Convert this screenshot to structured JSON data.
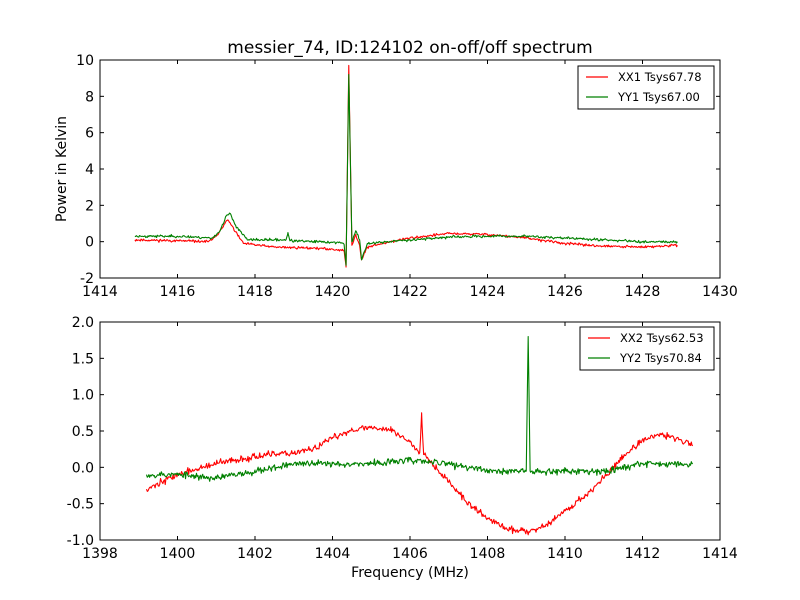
{
  "title": "messier_74, ID:124102 on-off/off spectrum",
  "chart_data": [
    {
      "type": "line",
      "title": "messier_74, ID:124102 on-off/off spectrum",
      "xlabel": "",
      "ylabel": "Power in Kelvin",
      "xlim": [
        1414,
        1430
      ],
      "ylim": [
        -2,
        10
      ],
      "xticks": [
        1414,
        1416,
        1418,
        1420,
        1422,
        1424,
        1426,
        1428,
        1430
      ],
      "yticks": [
        -2,
        0,
        2,
        4,
        6,
        8,
        10
      ],
      "xrange": [
        1414.9,
        1428.9
      ],
      "grid": false,
      "legend_position": "top-right",
      "series": [
        {
          "name": "XX1 Tsys67.78",
          "color": "#ff0000",
          "noise": 0.07,
          "seed": 11,
          "points": [
            [
              1414.9,
              0.1
            ],
            [
              1416.0,
              0.05
            ],
            [
              1416.8,
              0.0
            ],
            [
              1417.0,
              0.3
            ],
            [
              1417.2,
              0.95
            ],
            [
              1417.3,
              1.2
            ],
            [
              1417.45,
              0.7
            ],
            [
              1417.7,
              -0.1
            ],
            [
              1418.5,
              -0.3
            ],
            [
              1419.5,
              -0.35
            ],
            [
              1420.2,
              -0.45
            ],
            [
              1420.3,
              -0.5
            ],
            [
              1420.35,
              -1.4
            ],
            [
              1420.42,
              9.7
            ],
            [
              1420.5,
              -0.2
            ],
            [
              1420.6,
              0.4
            ],
            [
              1420.7,
              -0.2
            ],
            [
              1420.75,
              -1.0
            ],
            [
              1420.9,
              -0.3
            ],
            [
              1421.5,
              0.0
            ],
            [
              1422.0,
              0.2
            ],
            [
              1423.0,
              0.45
            ],
            [
              1424.0,
              0.4
            ],
            [
              1425.0,
              0.2
            ],
            [
              1426.0,
              -0.1
            ],
            [
              1427.0,
              -0.25
            ],
            [
              1428.0,
              -0.3
            ],
            [
              1428.9,
              -0.2
            ]
          ]
        },
        {
          "name": "YY1 Tsys67.00",
          "color": "#008000",
          "noise": 0.07,
          "seed": 23,
          "points": [
            [
              1414.9,
              0.3
            ],
            [
              1416.0,
              0.3
            ],
            [
              1416.9,
              0.2
            ],
            [
              1417.1,
              0.6
            ],
            [
              1417.25,
              1.4
            ],
            [
              1417.35,
              1.55
            ],
            [
              1417.5,
              0.9
            ],
            [
              1417.8,
              0.1
            ],
            [
              1418.8,
              0.1
            ],
            [
              1418.85,
              0.5
            ],
            [
              1418.9,
              0.05
            ],
            [
              1419.5,
              0.0
            ],
            [
              1420.2,
              -0.05
            ],
            [
              1420.3,
              -0.15
            ],
            [
              1420.35,
              -1.3
            ],
            [
              1420.42,
              9.2
            ],
            [
              1420.5,
              0.0
            ],
            [
              1420.6,
              0.6
            ],
            [
              1420.7,
              0.1
            ],
            [
              1420.75,
              -1.0
            ],
            [
              1420.9,
              -0.1
            ],
            [
              1422.0,
              0.1
            ],
            [
              1423.0,
              0.25
            ],
            [
              1424.0,
              0.3
            ],
            [
              1425.0,
              0.3
            ],
            [
              1426.0,
              0.2
            ],
            [
              1427.0,
              0.1
            ],
            [
              1428.0,
              0.0
            ],
            [
              1428.9,
              0.0
            ]
          ]
        }
      ]
    },
    {
      "type": "line",
      "title": "",
      "xlabel": "Frequency (MHz)",
      "ylabel": "",
      "xlim": [
        1398,
        1414
      ],
      "ylim": [
        -1.0,
        2.0
      ],
      "xticks": [
        1398,
        1400,
        1402,
        1404,
        1406,
        1408,
        1410,
        1412,
        1414
      ],
      "yticks": [
        -1.0,
        -0.5,
        0.0,
        0.5,
        1.0,
        1.5,
        2.0
      ],
      "xrange": [
        1399.2,
        1413.3
      ],
      "grid": false,
      "legend_position": "top-right",
      "series": [
        {
          "name": "XX2 Tsys62.53",
          "color": "#ff0000",
          "noise": 0.045,
          "seed": 37,
          "points": [
            [
              1399.2,
              -0.3
            ],
            [
              1400.0,
              -0.1
            ],
            [
              1401.0,
              0.05
            ],
            [
              1402.0,
              0.15
            ],
            [
              1403.0,
              0.2
            ],
            [
              1403.5,
              0.25
            ],
            [
              1404.0,
              0.4
            ],
            [
              1404.5,
              0.52
            ],
            [
              1405.0,
              0.55
            ],
            [
              1405.5,
              0.52
            ],
            [
              1406.0,
              0.35
            ],
            [
              1406.25,
              0.2
            ],
            [
              1406.3,
              0.75
            ],
            [
              1406.35,
              0.2
            ],
            [
              1406.5,
              0.1
            ],
            [
              1407.0,
              -0.2
            ],
            [
              1407.5,
              -0.5
            ],
            [
              1408.0,
              -0.7
            ],
            [
              1408.5,
              -0.85
            ],
            [
              1409.0,
              -0.88
            ],
            [
              1409.5,
              -0.8
            ],
            [
              1410.0,
              -0.6
            ],
            [
              1410.5,
              -0.4
            ],
            [
              1411.0,
              -0.15
            ],
            [
              1411.5,
              0.15
            ],
            [
              1412.0,
              0.38
            ],
            [
              1412.5,
              0.45
            ],
            [
              1413.0,
              0.38
            ],
            [
              1413.3,
              0.3
            ]
          ]
        },
        {
          "name": "YY2 Tsys70.84",
          "color": "#008000",
          "noise": 0.045,
          "seed": 53,
          "points": [
            [
              1399.2,
              -0.1
            ],
            [
              1400.0,
              -0.1
            ],
            [
              1401.0,
              -0.15
            ],
            [
              1402.0,
              -0.05
            ],
            [
              1403.0,
              0.05
            ],
            [
              1404.0,
              0.05
            ],
            [
              1405.0,
              0.05
            ],
            [
              1406.0,
              0.1
            ],
            [
              1407.0,
              0.05
            ],
            [
              1408.0,
              -0.05
            ],
            [
              1409.0,
              -0.05
            ],
            [
              1409.05,
              1.78
            ],
            [
              1409.1,
              -0.05
            ],
            [
              1410.0,
              -0.05
            ],
            [
              1411.0,
              -0.05
            ],
            [
              1412.0,
              0.05
            ],
            [
              1413.0,
              0.05
            ],
            [
              1413.3,
              0.05
            ]
          ]
        }
      ]
    }
  ]
}
